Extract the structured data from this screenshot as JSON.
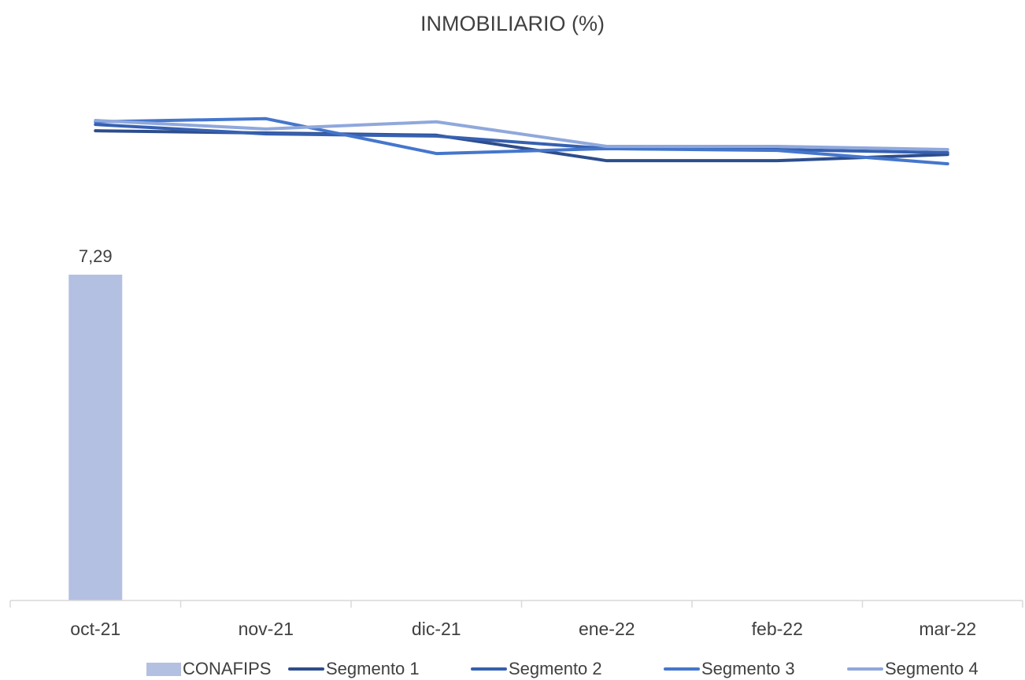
{
  "chart_data": {
    "type": "combo",
    "title": "INMOBILIARIO (%)",
    "categories": [
      "oct-21",
      "nov-21",
      "dic-21",
      "ene-22",
      "feb-22",
      "mar-22"
    ],
    "ylim": [
      0,
      12
    ],
    "series": [
      {
        "name": "CONAFIPS",
        "type": "bar",
        "color": "#b4c0e2",
        "values": [
          7.29,
          null,
          null,
          null,
          null,
          null
        ],
        "value_labels": [
          "7,29",
          null,
          null,
          null,
          null,
          null
        ]
      },
      {
        "name": "Segmento 1",
        "type": "line",
        "color": "#2d4d8c",
        "values": [
          10.51,
          10.46,
          10.41,
          9.84,
          9.84,
          9.98
        ]
      },
      {
        "name": "Segmento 2",
        "type": "line",
        "color": "#3660b0",
        "values": [
          10.65,
          10.44,
          10.39,
          10.11,
          10.09,
          10.02
        ]
      },
      {
        "name": "Segmento 3",
        "type": "line",
        "color": "#4576cc",
        "values": [
          10.71,
          10.78,
          10.0,
          10.11,
          10.07,
          9.77
        ]
      },
      {
        "name": "Segmento 4",
        "type": "line",
        "color": "#8fa8dc",
        "values": [
          10.74,
          10.55,
          10.71,
          10.16,
          10.16,
          10.09
        ]
      }
    ]
  }
}
